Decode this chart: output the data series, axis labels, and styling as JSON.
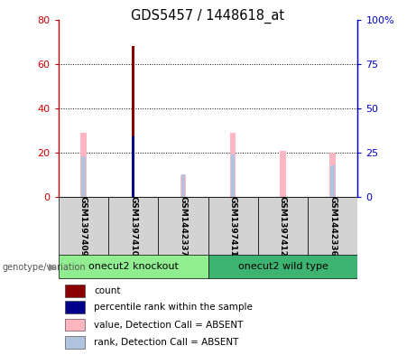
{
  "title": "GDS5457 / 1448618_at",
  "samples": [
    "GSM1397409",
    "GSM1397410",
    "GSM1442337",
    "GSM1397411",
    "GSM1397412",
    "GSM1442336"
  ],
  "groups": [
    {
      "label": "onecut2 knockout",
      "samples": [
        0,
        1,
        2
      ],
      "color": "#90EE90"
    },
    {
      "label": "onecut2 wild type",
      "samples": [
        3,
        4,
        5
      ],
      "color": "#3CB371"
    }
  ],
  "count_values": [
    0,
    68,
    0,
    0,
    0,
    0
  ],
  "count_color": "#8B0000",
  "percentile_values": [
    0,
    34,
    0,
    0,
    0,
    0
  ],
  "percentile_color": "#00008B",
  "absent_value_heights": [
    29,
    0,
    10,
    29,
    21,
    20
  ],
  "absent_rank_heights": [
    23,
    0,
    13,
    24,
    0,
    18
  ],
  "absent_value_color": "#FFB6C1",
  "absent_rank_color": "#B0C4DE",
  "ylim_left": [
    0,
    80
  ],
  "ylim_right": [
    0,
    100
  ],
  "yticks_left": [
    0,
    20,
    40,
    60,
    80
  ],
  "yticks_right": [
    0,
    25,
    50,
    75,
    100
  ],
  "ytick_labels_left": [
    "0",
    "20",
    "40",
    "60",
    "80"
  ],
  "ytick_labels_right": [
    "0",
    "25",
    "50",
    "75",
    "100%"
  ],
  "left_axis_color": "#CC0000",
  "right_axis_color": "#0000CC",
  "absent_bar_width": 0.12,
  "count_bar_width": 0.06,
  "legend_items": [
    {
      "color": "#8B0000",
      "label": "count"
    },
    {
      "color": "#00008B",
      "label": "percentile rank within the sample"
    },
    {
      "color": "#FFB6C1",
      "label": "value, Detection Call = ABSENT"
    },
    {
      "color": "#B0C4DE",
      "label": "rank, Detection Call = ABSENT"
    }
  ],
  "genotype_label": "genotype/variation",
  "sample_box_color": "#D3D3D3",
  "grid_color": "#000000",
  "background_color": "#FFFFFF"
}
